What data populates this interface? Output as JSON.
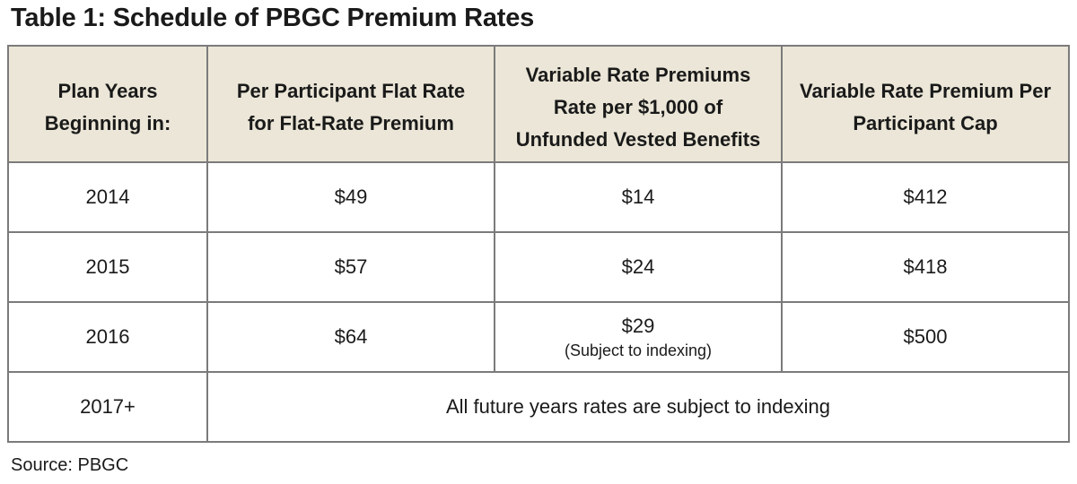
{
  "title": "Table 1: Schedule of PBGC Premium Rates",
  "headers": [
    [
      "Plan Years",
      "Beginning in:"
    ],
    [
      "Per Participant Flat Rate",
      "for Flat-Rate Premium"
    ],
    [
      "Variable Rate Premiums",
      "Rate per $1,000 of",
      "Unfunded Vested Benefits"
    ],
    [
      "Variable Rate Premium Per",
      "Participant Cap"
    ]
  ],
  "rows": [
    {
      "year": "2014",
      "flat_rate": "$49",
      "variable_rate": "$14",
      "variable_rate_note": "",
      "cap": "$412"
    },
    {
      "year": "2015",
      "flat_rate": "$57",
      "variable_rate": "$24",
      "variable_rate_note": "",
      "cap": "$418"
    },
    {
      "year": "2016",
      "flat_rate": "$64",
      "variable_rate": "$29",
      "variable_rate_note": "(Subject to indexing)",
      "cap": "$500"
    }
  ],
  "final_row": {
    "year": "2017+",
    "merged_text": "All future years rates are subject to indexing"
  },
  "source": "Source:  PBGC",
  "colors": {
    "header_background": "#ebe6d7",
    "border": "#7b7b7b"
  }
}
